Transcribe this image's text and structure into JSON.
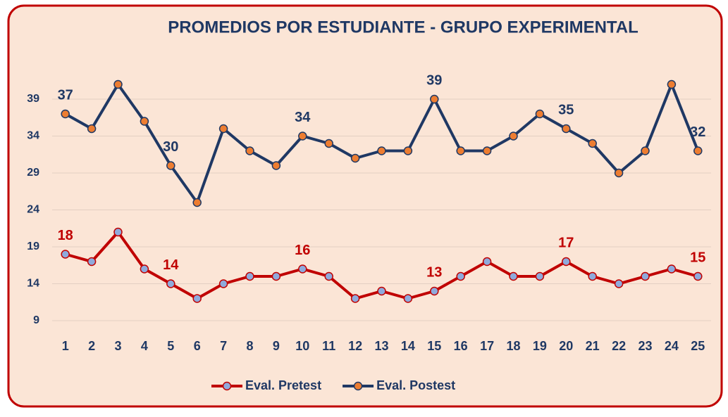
{
  "chart_data": {
    "type": "line",
    "title": "PROMEDIOS POR ESTUDIANTE - GRUPO EXPERIMENTAL",
    "categories": [
      1,
      2,
      3,
      4,
      5,
      6,
      7,
      8,
      9,
      10,
      11,
      12,
      13,
      14,
      15,
      16,
      17,
      18,
      19,
      20,
      21,
      22,
      23,
      24,
      25
    ],
    "series": [
      {
        "name": "Eval. Pretest",
        "color": "#c00000",
        "marker_color": "#8faadc",
        "values": [
          18,
          17,
          21,
          16,
          14,
          12,
          14,
          15,
          15,
          16,
          15,
          12,
          13,
          12,
          13,
          15,
          17,
          15,
          15,
          17,
          15,
          14,
          15,
          16,
          15
        ]
      },
      {
        "name": "Eval. Postest",
        "color": "#1f3864",
        "marker_color": "#ed7d31",
        "values": [
          37,
          35,
          41,
          36,
          30,
          25,
          35,
          32,
          30,
          34,
          33,
          31,
          32,
          32,
          39,
          32,
          32,
          34,
          37,
          35,
          33,
          29,
          32,
          41,
          32
        ]
      }
    ],
    "data_labels_at": [
      0,
      4,
      9,
      14,
      19,
      24
    ],
    "ylim": [
      7,
      44
    ],
    "yticks": [
      9,
      14,
      19,
      24,
      29,
      34,
      39
    ],
    "grid": true,
    "legend": "bottom"
  }
}
